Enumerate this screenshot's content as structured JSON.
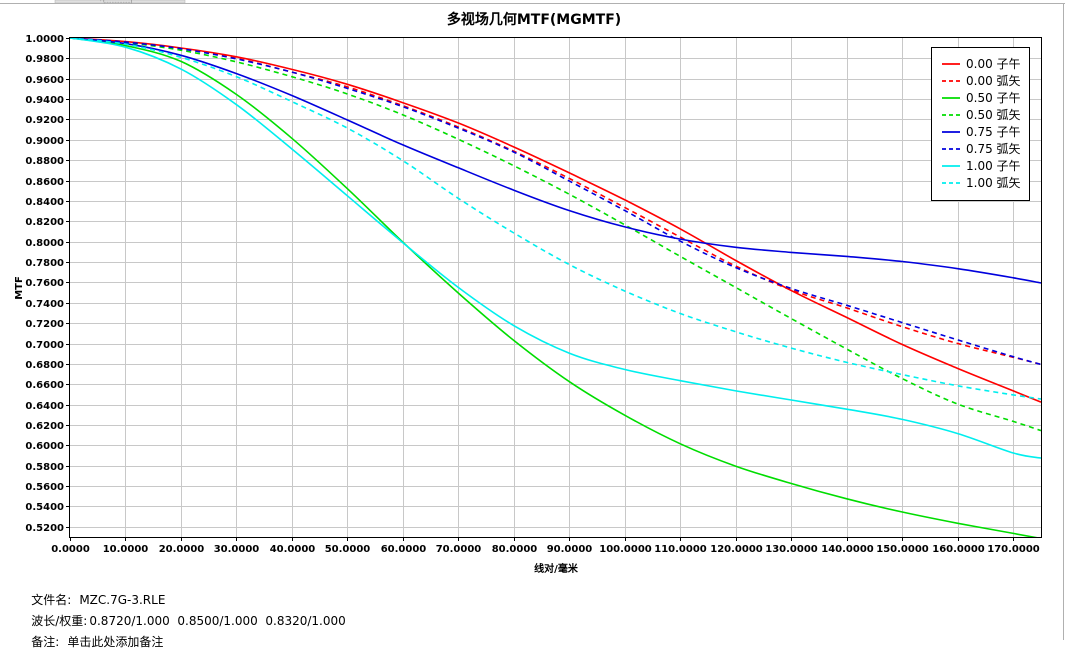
{
  "window": {
    "tab_fragment": "· (................)"
  },
  "chart_data": {
    "type": "line",
    "title": "多视场几何MTF(MGMTF)",
    "xlabel": "线对/毫米",
    "ylabel": "MTF",
    "xlim": [
      0,
      175
    ],
    "ylim": [
      0.51,
      1.0
    ],
    "xticks": [
      0,
      10,
      20,
      30,
      40,
      50,
      60,
      70,
      80,
      90,
      100,
      110,
      120,
      130,
      140,
      150,
      160,
      170
    ],
    "xtick_labels": [
      "0.0000",
      "10.0000",
      "20.0000",
      "30.0000",
      "40.0000",
      "50.0000",
      "60.0000",
      "70.0000",
      "80.0000",
      "90.0000",
      "100.0000",
      "110.0000",
      "120.0000",
      "130.0000",
      "140.0000",
      "150.0000",
      "160.0000",
      "170.0000"
    ],
    "yticks": [
      0.52,
      0.54,
      0.56,
      0.58,
      0.6,
      0.62,
      0.64,
      0.66,
      0.68,
      0.7,
      0.72,
      0.74,
      0.76,
      0.78,
      0.8,
      0.82,
      0.84,
      0.86,
      0.88,
      0.9,
      0.92,
      0.94,
      0.96,
      0.98,
      1.0
    ],
    "ytick_labels": [
      "0.5200",
      "0.5400",
      "0.5600",
      "0.5800",
      "0.6000",
      "0.6200",
      "0.6400",
      "0.6600",
      "0.6800",
      "0.7000",
      "0.7200",
      "0.7400",
      "0.7600",
      "0.7800",
      "0.8000",
      "0.8200",
      "0.8400",
      "0.8600",
      "0.8800",
      "0.9000",
      "0.9200",
      "0.9400",
      "0.9600",
      "0.9800",
      "1.0000"
    ],
    "grid": true,
    "legend_position": "top-right",
    "x": [
      0,
      10,
      20,
      30,
      40,
      50,
      60,
      70,
      80,
      90,
      100,
      110,
      120,
      130,
      140,
      150,
      160,
      170,
      175
    ],
    "series": [
      {
        "name": "0.00 子午",
        "color": "#ff0000",
        "dash": false,
        "values": [
          1.0,
          0.9965,
          0.9902,
          0.9815,
          0.9692,
          0.9545,
          0.9365,
          0.9165,
          0.893,
          0.8675,
          0.841,
          0.8125,
          0.7815,
          0.752,
          0.7255,
          0.699,
          0.6755,
          0.6535,
          0.6425
        ]
      },
      {
        "name": "0.00 弧矢",
        "color": "#ff0000",
        "dash": true,
        "values": [
          1.0,
          0.996,
          0.9895,
          0.98,
          0.9665,
          0.952,
          0.9335,
          0.9125,
          0.8888,
          0.862,
          0.8335,
          0.8045,
          0.776,
          0.7525,
          0.735,
          0.7165,
          0.7,
          0.6865,
          0.6795
        ]
      },
      {
        "name": "0.50 子午",
        "color": "#00dd00",
        "dash": false,
        "values": [
          1.0,
          0.9925,
          0.977,
          0.9445,
          0.9015,
          0.852,
          0.7995,
          0.7495,
          0.703,
          0.6625,
          0.6295,
          0.6015,
          0.5795,
          0.5625,
          0.5475,
          0.5345,
          0.5235,
          0.5135,
          0.5085
        ]
      },
      {
        "name": "0.50 弧矢",
        "color": "#00dd00",
        "dash": true,
        "values": [
          1.0,
          0.9955,
          0.988,
          0.9765,
          0.962,
          0.945,
          0.9245,
          0.9005,
          0.8745,
          0.8465,
          0.8165,
          0.7855,
          0.755,
          0.7245,
          0.6945,
          0.6655,
          0.6405,
          0.6235,
          0.6145
        ]
      },
      {
        "name": "0.75 子午",
        "color": "#0000dd",
        "dash": false,
        "values": [
          1.0,
          0.9945,
          0.983,
          0.965,
          0.9435,
          0.9195,
          0.895,
          0.8725,
          0.8505,
          0.8305,
          0.8145,
          0.8025,
          0.7945,
          0.7895,
          0.7855,
          0.7805,
          0.7735,
          0.7645,
          0.7595
        ]
      },
      {
        "name": "0.75 弧矢",
        "color": "#0000dd",
        "dash": true,
        "values": [
          1.0,
          0.996,
          0.9895,
          0.9795,
          0.9665,
          0.9505,
          0.9325,
          0.9115,
          0.888,
          0.8595,
          0.8305,
          0.8005,
          0.7745,
          0.754,
          0.7375,
          0.7205,
          0.7035,
          0.687,
          0.6795
        ]
      },
      {
        "name": "1.00 子午",
        "color": "#00eeee",
        "dash": false,
        "values": [
          1.0,
          0.991,
          0.9695,
          0.9345,
          0.891,
          0.845,
          0.799,
          0.755,
          0.7175,
          0.6905,
          0.6745,
          0.6635,
          0.6535,
          0.6445,
          0.6355,
          0.6255,
          0.6115,
          0.5925,
          0.5875
        ]
      },
      {
        "name": "1.00 弧矢",
        "color": "#00eeee",
        "dash": true,
        "values": [
          1.0,
          0.994,
          0.981,
          0.962,
          0.9375,
          0.9115,
          0.8795,
          0.8425,
          0.8085,
          0.7775,
          0.7515,
          0.7295,
          0.7115,
          0.6955,
          0.6815,
          0.6695,
          0.6585,
          0.6495,
          0.6455
        ]
      }
    ]
  },
  "footer": {
    "file_label": "文件名:",
    "file_value": "MZC.7G-3.RLE",
    "wave_label": "波长/权重:",
    "wave_value": "0.8720/1.000  0.8500/1.000  0.8320/1.000",
    "note_label": "备注:",
    "note_value": "单击此处添加备注"
  }
}
